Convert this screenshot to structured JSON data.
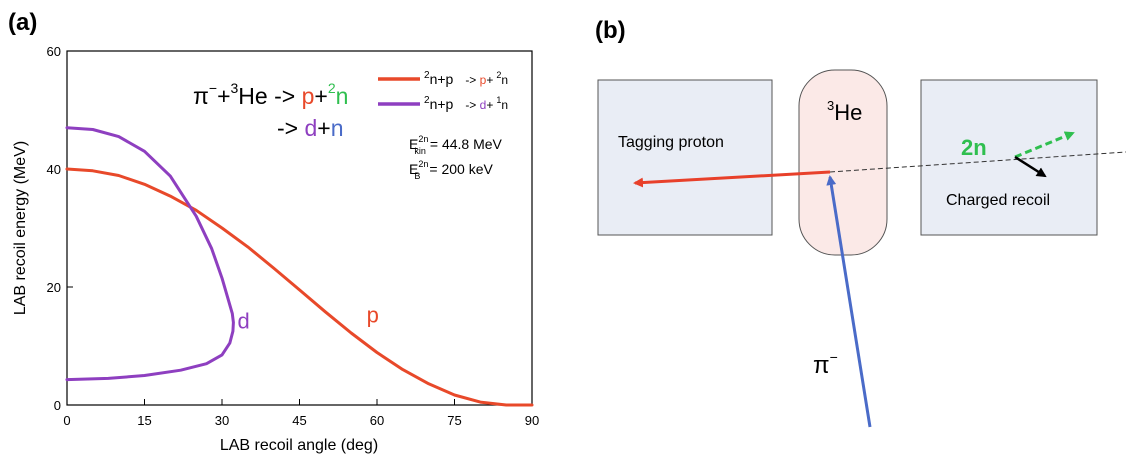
{
  "panel_labels": {
    "a": "(a)",
    "b": "(b)"
  },
  "chart_data": {
    "type": "line",
    "xlabel": "LAB recoil angle (deg)",
    "ylabel": "LAB recoil energy (MeV)",
    "xlim": [
      0,
      90
    ],
    "ylim": [
      0,
      60
    ],
    "xticks": [
      "0",
      "15",
      "30",
      "45",
      "60",
      "75",
      "90"
    ],
    "yticks": [
      "0",
      "20",
      "40",
      "60"
    ],
    "grid": false,
    "series": [
      {
        "color": "#e8492a",
        "curve_label": "p",
        "legend": {
          "left": "2n+p",
          "right": "-> p+ 2n"
        },
        "x": [
          0,
          5,
          10,
          15,
          20,
          25,
          30,
          35,
          40,
          45,
          50,
          55,
          60,
          65,
          70,
          75,
          80,
          85,
          90
        ],
        "y": [
          40,
          39.7,
          38.9,
          37.4,
          35.4,
          33,
          30,
          26.8,
          23.2,
          19.5,
          15.8,
          12.2,
          8.9,
          6,
          3.6,
          1.7,
          0.5,
          0,
          0
        ]
      },
      {
        "color": "#8e3fc0",
        "curve_label": "d",
        "legend": {
          "left": "2n+p",
          "right": "-> d+ 1n"
        },
        "x": [
          0,
          5,
          10,
          15,
          20,
          25,
          28,
          30,
          31,
          32,
          32.2,
          32.1,
          31.5,
          30,
          27,
          22,
          15,
          8,
          0
        ],
        "y": [
          47,
          46.7,
          45.5,
          43,
          38.8,
          32,
          26.5,
          21.5,
          18.5,
          15.5,
          14,
          12.5,
          10.5,
          8.5,
          7,
          5.9,
          5,
          4.5,
          4.3
        ]
      }
    ],
    "annotations": {
      "reaction_main": {
        "pi": "π",
        "minus": "−",
        "plus1": "+",
        "he_sup": "3",
        "he": "He",
        "arrow": " -> ",
        "p": "p",
        "plus2": "+",
        "n2_sup": "2",
        "n": "n"
      },
      "reaction_alt": {
        "arrow": "-> ",
        "d": "d",
        "plus": "+",
        "n": "n"
      },
      "ekin": {
        "E": "E",
        "sup": "2n",
        "sub": "kin",
        "value": "= 44.8 MeV"
      },
      "eb": {
        "E": "E",
        "sup": "2n",
        "sub": "B",
        "value": "= 200 keV"
      }
    }
  },
  "diagram": {
    "left_box_label": "Tagging proton",
    "target_label": {
      "sup": "3",
      "text": "He"
    },
    "right_box_label": "Charged recoil",
    "dineutron_label": "2n",
    "pion_label": "π",
    "pion_charge": "−",
    "colors": {
      "box_fill": "#e9edf5",
      "target_fill": "#fbe9e7",
      "proton_arrow": "#e8402a",
      "pion_arrow": "#4a6bc8",
      "dineutron_arrow": "#2fbf4f"
    }
  }
}
